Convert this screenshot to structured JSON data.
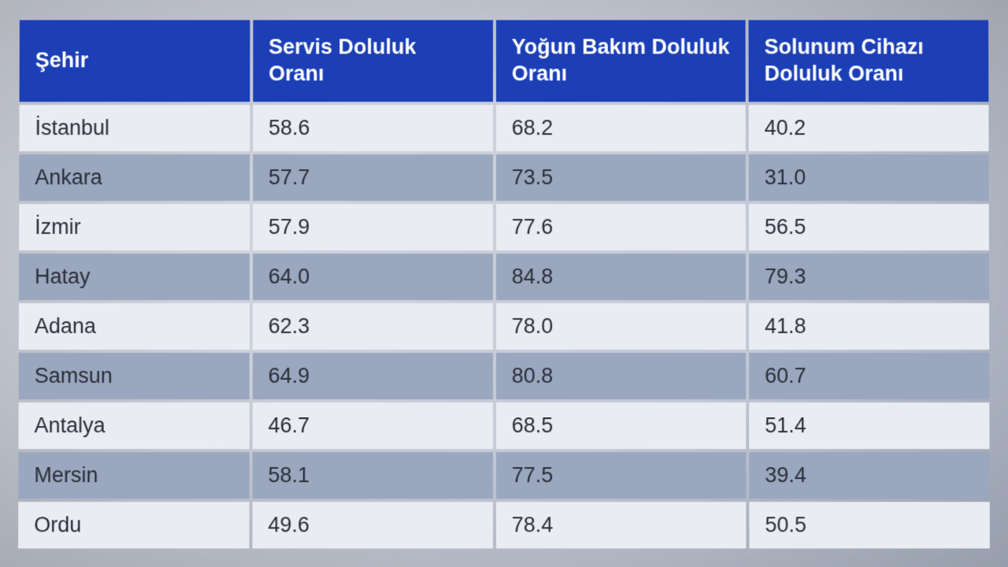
{
  "table": {
    "type": "table",
    "header_bg": "#1c3fb5",
    "header_text_color": "#ffffff",
    "row_odd_bg": "#e9ecf2",
    "row_even_bg": "#9aa7bf",
    "cell_text_color": "#2a2e38",
    "border_spacing": 4,
    "header_fontsize": 27,
    "cell_fontsize": 27,
    "columns": [
      {
        "key": "city",
        "label": "Şehir",
        "width_pct": 24
      },
      {
        "key": "servis",
        "label": "Servis Doluluk Oranı",
        "width_pct": 25
      },
      {
        "key": "yogun",
        "label": "Yoğun Bakım Doluluk Oranı",
        "width_pct": 26
      },
      {
        "key": "solunum",
        "label": "Solunum Cihazı Doluluk Oranı",
        "width_pct": 25
      }
    ],
    "rows": [
      {
        "city": "İstanbul",
        "servis": "58.6",
        "yogun": "68.2",
        "solunum": "40.2"
      },
      {
        "city": "Ankara",
        "servis": "57.7",
        "yogun": "73.5",
        "solunum": "31.0"
      },
      {
        "city": "İzmir",
        "servis": "57.9",
        "yogun": "77.6",
        "solunum": "56.5"
      },
      {
        "city": "Hatay",
        "servis": "64.0",
        "yogun": "84.8",
        "solunum": "79.3"
      },
      {
        "city": "Adana",
        "servis": "62.3",
        "yogun": "78.0",
        "solunum": "41.8"
      },
      {
        "city": "Samsun",
        "servis": "64.9",
        "yogun": "80.8",
        "solunum": "60.7"
      },
      {
        "city": "Antalya",
        "servis": "46.7",
        "yogun": "68.5",
        "solunum": "51.4"
      },
      {
        "city": "Mersin",
        "servis": "58.1",
        "yogun": "77.5",
        "solunum": "39.4"
      },
      {
        "city": "Ordu",
        "servis": "49.6",
        "yogun": "78.4",
        "solunum": "50.5"
      }
    ]
  }
}
